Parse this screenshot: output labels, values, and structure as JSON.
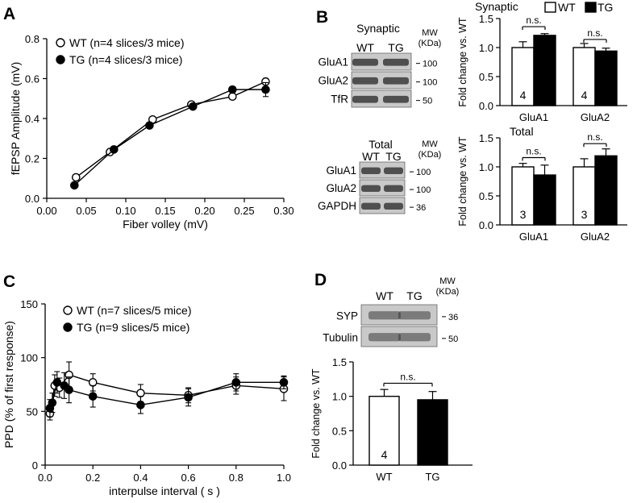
{
  "panel_labels": {
    "a": "A",
    "b": "B",
    "c": "C",
    "d": "D"
  },
  "chart_data": [
    {
      "id": "A",
      "type": "scatter",
      "xlabel": "Fiber volley (mV)",
      "ylabel": "fEPSP Amplitude  (mV)",
      "xlim": [
        0,
        0.3
      ],
      "ylim": [
        0,
        0.8
      ],
      "xticks": [
        0.0,
        0.05,
        0.1,
        0.15,
        0.2,
        0.25,
        0.3
      ],
      "xtick_labels": [
        "0.00",
        "0.05",
        "0.10",
        "0.15",
        "0.20",
        "0.25",
        "0.30"
      ],
      "yticks": [
        0.0,
        0.2,
        0.4,
        0.6,
        0.8
      ],
      "ytick_labels": [
        "0.0",
        "0.2",
        "0.4",
        "0.6",
        "0.8"
      ],
      "series": [
        {
          "name": "WT (n=4 slices/3 mice)",
          "marker": "open",
          "x": [
            0.037,
            0.08,
            0.134,
            0.183,
            0.235,
            0.277
          ],
          "y": [
            0.105,
            0.232,
            0.395,
            0.47,
            0.51,
            0.585
          ],
          "err": [
            0.01,
            0.01,
            0.01,
            0.01,
            0.01,
            0.015
          ]
        },
        {
          "name": "TG (n=4 slices/3 mice)",
          "marker": "filled",
          "x": [
            0.035,
            0.085,
            0.13,
            0.185,
            0.235,
            0.277
          ],
          "y": [
            0.065,
            0.245,
            0.365,
            0.46,
            0.545,
            0.545
          ],
          "err": [
            0.01,
            0.01,
            0.01,
            0.01,
            0.015,
            0.035
          ]
        }
      ]
    },
    {
      "id": "C",
      "type": "line",
      "xlabel": "interpulse interval ( s )",
      "ylabel": "PPD (% of first response)",
      "xlim": [
        0,
        1.0
      ],
      "ylim": [
        0,
        150
      ],
      "xticks": [
        0.0,
        0.2,
        0.4,
        0.6,
        0.8,
        1.0
      ],
      "xtick_labels": [
        "0.0",
        "0.2",
        "0.4",
        "0.6",
        "0.8",
        "1.0"
      ],
      "yticks": [
        0,
        50,
        100,
        150
      ],
      "ytick_labels": [
        "0",
        "50",
        "100",
        "150"
      ],
      "series": [
        {
          "name": "WT (n=7 slices/5 mice)",
          "marker": "open",
          "x": [
            0.02,
            0.04,
            0.06,
            0.1,
            0.2,
            0.4,
            0.6,
            0.8,
            1.0
          ],
          "y": [
            48,
            74,
            72,
            84,
            77,
            67,
            65,
            74,
            71
          ],
          "err": [
            6,
            10,
            9,
            12,
            8,
            8,
            7,
            8,
            11
          ]
        },
        {
          "name": "TG (n=9 slices/5 mice)",
          "marker": "filled",
          "x": [
            0.02,
            0.03,
            0.05,
            0.08,
            0.1,
            0.2,
            0.4,
            0.6,
            0.8,
            1.0
          ],
          "y": [
            53,
            58,
            77,
            74,
            70,
            64,
            56,
            63,
            77,
            77
          ],
          "err": [
            8,
            9,
            10,
            12,
            12,
            10,
            8,
            8,
            8,
            6
          ]
        }
      ]
    },
    {
      "id": "B-synaptic",
      "type": "bar",
      "title": "Synaptic",
      "ylabel": "Fold change vs. WT",
      "categories": [
        "GluA1",
        "GluA2"
      ],
      "ylim": [
        0,
        1.5
      ],
      "yticks": [
        0.0,
        0.5,
        1.0,
        1.5
      ],
      "ytick_labels": [
        "0.0",
        "0.5",
        "1.0",
        "1.5"
      ],
      "legend": [
        {
          "name": "WT",
          "fill": "open"
        },
        {
          "name": "TG",
          "fill": "filled"
        }
      ],
      "series": [
        {
          "name": "WT",
          "values": [
            1.0,
            1.0
          ],
          "err": [
            0.1,
            0.07
          ],
          "n": [
            "4",
            "4"
          ]
        },
        {
          "name": "TG",
          "values": [
            1.21,
            0.94
          ],
          "err": [
            0.03,
            0.05
          ],
          "n": [
            "4",
            "4"
          ]
        }
      ],
      "annotations": [
        "n.s.",
        "n.s."
      ]
    },
    {
      "id": "B-total",
      "type": "bar",
      "title": "Total",
      "ylabel": "Fold change vs. WT",
      "categories": [
        "GluA1",
        "GluA2"
      ],
      "ylim": [
        0,
        1.5
      ],
      "yticks": [
        0.0,
        0.5,
        1.0,
        1.5
      ],
      "ytick_labels": [
        "0.0",
        "0.5",
        "1.0",
        "1.5"
      ],
      "series": [
        {
          "name": "WT",
          "values": [
            1.0,
            1.0
          ],
          "err": [
            0.06,
            0.14
          ],
          "n": [
            "3",
            "3"
          ]
        },
        {
          "name": "TG",
          "values": [
            0.86,
            1.19
          ],
          "err": [
            0.17,
            0.12
          ],
          "n": [
            "3",
            "3"
          ]
        }
      ],
      "annotations": [
        "n.s.",
        "n.s."
      ]
    },
    {
      "id": "D",
      "type": "bar",
      "ylabel": "Fold change vs. WT",
      "categories": [
        "WT",
        "TG"
      ],
      "ylim": [
        0,
        1.5
      ],
      "yticks": [
        0.0,
        0.5,
        1.0,
        1.5
      ],
      "ytick_labels": [
        "0.0",
        "0.5",
        "1.0",
        "1.5"
      ],
      "values": [
        1.0,
        0.95
      ],
      "err": [
        0.1,
        0.12
      ],
      "n": [
        "4",
        "4"
      ],
      "annotations": [
        "n.s."
      ]
    }
  ],
  "blots": {
    "synaptic": {
      "title": "Synaptic",
      "lanes": [
        "WT",
        "TG"
      ],
      "mw_label_1": "MW",
      "mw_label_2": "(KDa)",
      "rows": [
        {
          "label": "GluA1",
          "mw": "100"
        },
        {
          "label": "GluA2",
          "mw": "100"
        },
        {
          "label": "TfR",
          "mw": "50"
        }
      ]
    },
    "total": {
      "title": "Total",
      "lanes": [
        "WT",
        "TG"
      ],
      "mw_label_1": "MW",
      "mw_label_2": "(KDa)",
      "rows": [
        {
          "label": "GluA1",
          "mw": "100"
        },
        {
          "label": "GluA2",
          "mw": "100"
        },
        {
          "label": "GAPDH",
          "mw": "36"
        }
      ]
    },
    "d": {
      "lanes": [
        "WT",
        "TG"
      ],
      "mw_label_1": "MW",
      "mw_label_2": "(KDa)",
      "rows": [
        {
          "label": "SYP",
          "mw": "36"
        },
        {
          "label": "Tubulin",
          "mw": "50"
        }
      ]
    }
  }
}
